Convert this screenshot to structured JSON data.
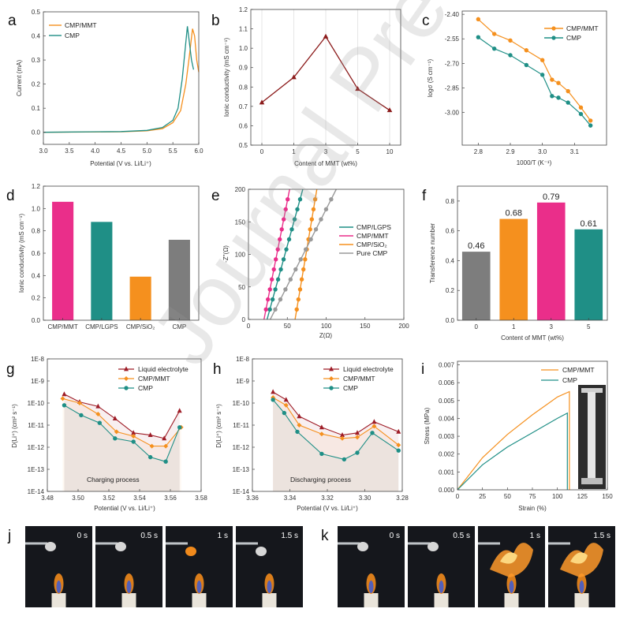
{
  "watermark": "Journal Pre-",
  "colors": {
    "cmpmmt": "#f5901e",
    "cmp": "#1f8f86",
    "liquid": "#9e1c26",
    "pink": "#ea2e8a",
    "gray": "#7d7d7d",
    "darkred": "#8b1a1a"
  },
  "photos": {
    "j": {
      "letter": "j",
      "labels": [
        "0 s",
        "0.5 s",
        "1 s",
        "1.5 s"
      ]
    },
    "k": {
      "letter": "k",
      "labels": [
        "0 s",
        "0.5 s",
        "1 s",
        "1.5 s"
      ]
    }
  },
  "chart_data": [
    {
      "id": "a",
      "letter": "a",
      "type": "line",
      "xlabel": "Potential (V vs. Li/Li⁺)",
      "ylabel": "Current (mA)",
      "xlim": [
        3.0,
        6.0
      ],
      "ylim": [
        -0.05,
        0.5
      ],
      "xticks": [
        "3.0",
        "3.5",
        "4.0",
        "4.5",
        "5.0",
        "5.5",
        "6.0"
      ],
      "yticks": [
        "0.0",
        "0.1",
        "0.2",
        "0.3",
        "0.4",
        "0.5"
      ],
      "legend_pos": "top-left",
      "series": [
        {
          "name": "CMP/MMT",
          "color": "#f5901e",
          "points": [
            [
              3.0,
              0
            ],
            [
              4.5,
              0.002
            ],
            [
              5.0,
              0.006
            ],
            [
              5.3,
              0.015
            ],
            [
              5.5,
              0.04
            ],
            [
              5.65,
              0.09
            ],
            [
              5.75,
              0.2
            ],
            [
              5.82,
              0.32
            ],
            [
              5.88,
              0.43
            ],
            [
              5.92,
              0.4
            ],
            [
              5.96,
              0.3
            ],
            [
              6.0,
              0.25
            ]
          ]
        },
        {
          "name": "CMP",
          "color": "#1f8f86",
          "points": [
            [
              3.0,
              0
            ],
            [
              4.5,
              0.003
            ],
            [
              5.0,
              0.008
            ],
            [
              5.3,
              0.02
            ],
            [
              5.5,
              0.05
            ],
            [
              5.6,
              0.1
            ],
            [
              5.68,
              0.22
            ],
            [
              5.74,
              0.35
            ],
            [
              5.78,
              0.44
            ],
            [
              5.82,
              0.37
            ],
            [
              5.86,
              0.3
            ],
            [
              5.9,
              0.26
            ]
          ]
        }
      ]
    },
    {
      "id": "b",
      "letter": "b",
      "type": "line",
      "xlabel": "Content of MMT (wt%)",
      "ylabel": "Ionic conductivity (mS cm⁻¹)",
      "categories": [
        "0",
        "1",
        "3",
        "5",
        "10"
      ],
      "ylim": [
        0.5,
        1.2
      ],
      "yticks": [
        "0.5",
        "0.6",
        "0.7",
        "0.8",
        "0.9",
        "1.0",
        "1.1",
        "1.2"
      ],
      "series": [
        {
          "color": "#8b1a1a",
          "values": [
            0.72,
            0.85,
            1.06,
            0.79,
            0.68
          ]
        }
      ]
    },
    {
      "id": "c",
      "letter": "c",
      "type": "line",
      "xlabel": "1000/T (K⁻¹)",
      "ylabel": "logσ (S cm⁻¹)",
      "xlim": [
        2.75,
        3.2
      ],
      "ylim": [
        -3.2,
        -2.38
      ],
      "xticks": [
        "2.8",
        "2.9",
        "3.0",
        "3.1"
      ],
      "yticks": [
        "-2.40",
        "-2.55",
        "-2.70",
        "-2.85",
        "-3.00"
      ],
      "legend_pos": "top-right",
      "series": [
        {
          "name": "CMP/MMT",
          "color": "#f5901e",
          "points": [
            [
              2.8,
              -2.43
            ],
            [
              2.85,
              -2.52
            ],
            [
              2.9,
              -2.56
            ],
            [
              2.95,
              -2.62
            ],
            [
              3.0,
              -2.68
            ],
            [
              3.03,
              -2.8
            ],
            [
              3.05,
              -2.82
            ],
            [
              3.08,
              -2.87
            ],
            [
              3.12,
              -2.97
            ],
            [
              3.15,
              -3.05
            ]
          ]
        },
        {
          "name": "CMP",
          "color": "#1f8f86",
          "points": [
            [
              2.8,
              -2.54
            ],
            [
              2.85,
              -2.61
            ],
            [
              2.9,
              -2.65
            ],
            [
              2.95,
              -2.71
            ],
            [
              3.0,
              -2.77
            ],
            [
              3.03,
              -2.9
            ],
            [
              3.05,
              -2.91
            ],
            [
              3.08,
              -2.94
            ],
            [
              3.12,
              -3.01
            ],
            [
              3.15,
              -3.08
            ]
          ]
        }
      ]
    },
    {
      "id": "d",
      "letter": "d",
      "type": "bar",
      "ylabel": "Ionic conductivity (mS cm⁻¹)",
      "categories": [
        "CMP/MMT",
        "CMP/LGPS",
        "CMP/SiO₂",
        "CMP"
      ],
      "values": [
        1.06,
        0.88,
        0.39,
        0.72
      ],
      "colors": [
        "#ea2e8a",
        "#1f8f86",
        "#f5901e",
        "#7d7d7d"
      ],
      "ylim": [
        0,
        1.2
      ],
      "yticks": [
        "0.0",
        "0.2",
        "0.4",
        "0.6",
        "0.8",
        "1.0",
        "1.2"
      ]
    },
    {
      "id": "e",
      "letter": "e",
      "type": "line",
      "xlabel": "Z(Ω)",
      "ylabel": "-Z''(Ω)",
      "xlim": [
        0,
        200
      ],
      "ylim": [
        0,
        200
      ],
      "xticks": [
        "0",
        "50",
        "100",
        "150",
        "200"
      ],
      "yticks": [
        "0",
        "50",
        "100",
        "150",
        "200"
      ],
      "legend_pos": "middle-right",
      "series": [
        {
          "name": "CMP/LGPS",
          "color": "#1f8f86",
          "points": [
            [
              24,
              0
            ],
            [
              70,
              200
            ]
          ]
        },
        {
          "name": "CMP/MMT",
          "color": "#ea2e8a",
          "points": [
            [
              20,
              0
            ],
            [
              53,
              200
            ]
          ]
        },
        {
          "name": "CMP/SiO₂",
          "color": "#f5901e",
          "points": [
            [
              60,
              0
            ],
            [
              88,
              200
            ]
          ]
        },
        {
          "name": "Pure CMP",
          "color": "#9a9a9a",
          "points": [
            [
              28,
              0
            ],
            [
              113,
              200
            ]
          ]
        }
      ]
    },
    {
      "id": "f",
      "letter": "f",
      "type": "bar",
      "xlabel": "Content of MMT (wt%)",
      "ylabel": "Transference number",
      "categories": [
        "0",
        "1",
        "3",
        "5"
      ],
      "values": [
        0.46,
        0.68,
        0.79,
        0.61
      ],
      "value_labels": [
        "0.46",
        "0.68",
        "0.79",
        "0.61"
      ],
      "colors": [
        "#7d7d7d",
        "#f5901e",
        "#ea2e8a",
        "#1f8f86"
      ],
      "ylim": [
        0,
        0.9
      ],
      "yticks": [
        "0.0",
        "0.2",
        "0.4",
        "0.6",
        "0.8"
      ]
    },
    {
      "id": "g",
      "letter": "g",
      "type": "line",
      "xlabel": "Potential (V vs. Li/Li⁺)",
      "ylabel": "D(Li⁺) (cm² s⁻¹)",
      "xlim": [
        3.48,
        3.58
      ],
      "ylim": [
        -14,
        -8
      ],
      "xticks": [
        "3.48",
        "3.50",
        "3.52",
        "3.54",
        "3.56",
        "3.58"
      ],
      "yticks": [
        "1E-8",
        "1E-9",
        "1E-10",
        "1E-11",
        "1E-12",
        "1E-13",
        "1E-14"
      ],
      "annotation": "Charging process",
      "legend_pos": "top-right",
      "series": [
        {
          "name": "Liquid electrolyte",
          "color": "#9e1c26",
          "marker": "triangle",
          "points": [
            [
              3.491,
              -9.6
            ],
            [
              3.501,
              -9.95
            ],
            [
              3.513,
              -10.15
            ],
            [
              3.524,
              -10.7
            ],
            [
              3.536,
              -11.35
            ],
            [
              3.547,
              -11.45
            ],
            [
              3.556,
              -11.6
            ],
            [
              3.566,
              -10.35
            ]
          ]
        },
        {
          "name": "CMP/MMT",
          "color": "#f5901e",
          "marker": "diamond",
          "points": [
            [
              3.49,
              -9.8
            ],
            [
              3.501,
              -10.0
            ],
            [
              3.513,
              -10.5
            ],
            [
              3.525,
              -11.3
            ],
            [
              3.536,
              -11.5
            ],
            [
              3.548,
              -11.95
            ],
            [
              3.557,
              -11.95
            ],
            [
              3.567,
              -11.1
            ]
          ]
        },
        {
          "name": "CMP",
          "color": "#1f8f86",
          "marker": "circle",
          "points": [
            [
              3.491,
              -10.1
            ],
            [
              3.502,
              -10.55
            ],
            [
              3.514,
              -10.9
            ],
            [
              3.524,
              -11.6
            ],
            [
              3.536,
              -11.75
            ],
            [
              3.547,
              -12.45
            ],
            [
              3.557,
              -12.65
            ],
            [
              3.566,
              -11.1
            ]
          ]
        }
      ]
    },
    {
      "id": "h",
      "letter": "h",
      "type": "line",
      "xlabel": "Potential (V vs. Li/Li⁺)",
      "ylabel": "D(Li⁺) (cm² s⁻¹)",
      "xlim": [
        3.36,
        3.28
      ],
      "ylim": [
        -14,
        -8
      ],
      "xticks": [
        "3.36",
        "3.34",
        "3.32",
        "3.30",
        "3.28"
      ],
      "yticks": [
        "1E-8",
        "1E-9",
        "1E-10",
        "1E-11",
        "1E-12",
        "1E-13",
        "1E-14"
      ],
      "annotation": "Discharging process",
      "legend_pos": "top-right",
      "series": [
        {
          "name": "Liquid electrolyte",
          "color": "#9e1c26",
          "marker": "triangle",
          "points": [
            [
              3.349,
              -9.5
            ],
            [
              3.342,
              -9.85
            ],
            [
              3.335,
              -10.6
            ],
            [
              3.323,
              -11.1
            ],
            [
              3.312,
              -11.45
            ],
            [
              3.304,
              -11.35
            ],
            [
              3.295,
              -10.85
            ],
            [
              3.282,
              -11.3
            ]
          ]
        },
        {
          "name": "CMP/MMT",
          "color": "#f5901e",
          "marker": "diamond",
          "points": [
            [
              3.349,
              -9.75
            ],
            [
              3.342,
              -10.1
            ],
            [
              3.335,
              -11.0
            ],
            [
              3.323,
              -11.4
            ],
            [
              3.312,
              -11.6
            ],
            [
              3.304,
              -11.55
            ],
            [
              3.295,
              -11.05
            ],
            [
              3.282,
              -11.9
            ]
          ]
        },
        {
          "name": "CMP",
          "color": "#1f8f86",
          "marker": "circle",
          "points": [
            [
              3.349,
              -9.85
            ],
            [
              3.343,
              -10.45
            ],
            [
              3.336,
              -11.3
            ],
            [
              3.323,
              -12.3
            ],
            [
              3.311,
              -12.55
            ],
            [
              3.304,
              -12.25
            ],
            [
              3.296,
              -11.35
            ],
            [
              3.282,
              -12.15
            ]
          ]
        }
      ]
    },
    {
      "id": "i",
      "letter": "i",
      "type": "line",
      "xlabel": "Strain (%)",
      "ylabel": "Stress (MPa)",
      "xlim": [
        0,
        150
      ],
      "ylim": [
        0,
        0.0072
      ],
      "xticks": [
        "0",
        "25",
        "50",
        "75",
        "100",
        "125",
        "150"
      ],
      "yticks": [
        "0.000",
        "0.001",
        "0.002",
        "0.003",
        "0.004",
        "0.005",
        "0.006",
        "0.007"
      ],
      "legend_pos": "top-right",
      "series": [
        {
          "name": "CMP/MMT",
          "color": "#f5901e",
          "points": [
            [
              0,
              0
            ],
            [
              25,
              0.0018
            ],
            [
              50,
              0.0031
            ],
            [
              75,
              0.0042
            ],
            [
              100,
              0.0052
            ],
            [
              112,
              0.0055
            ],
            [
              112,
              0
            ]
          ]
        },
        {
          "name": "CMP",
          "color": "#1f8f86",
          "points": [
            [
              0,
              0
            ],
            [
              25,
              0.0014
            ],
            [
              50,
              0.0024
            ],
            [
              75,
              0.0032
            ],
            [
              100,
              0.004
            ],
            [
              110,
              0.0043
            ],
            [
              110,
              0
            ]
          ]
        }
      ]
    }
  ]
}
